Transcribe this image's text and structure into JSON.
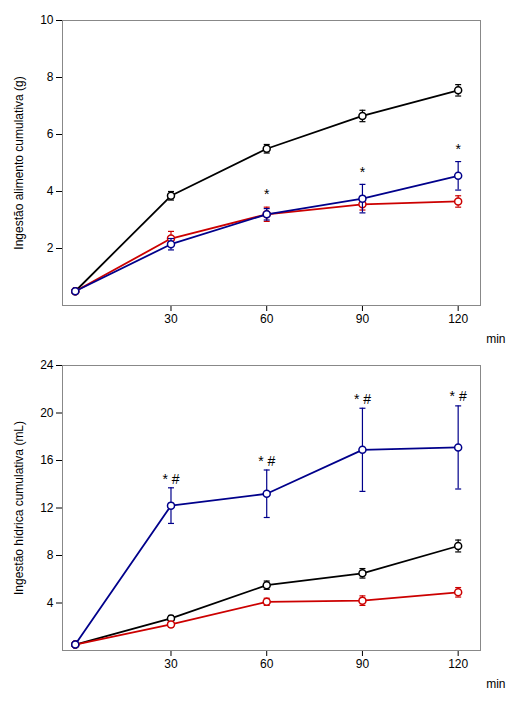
{
  "chart_data": [
    {
      "type": "line",
      "ylabel": "Ingestão alimento cumulativa (g)",
      "xlabel": "min",
      "x": [
        0,
        30,
        60,
        90,
        120
      ],
      "xlim": [
        -4,
        127
      ],
      "xticks": [
        30,
        60,
        90,
        120
      ],
      "ylim": [
        0,
        10
      ],
      "yticks": [
        2,
        4,
        6,
        8,
        10
      ],
      "series": [
        {
          "color": "#000000",
          "marker": "circle",
          "values": [
            0.5,
            3.85,
            5.5,
            6.65,
            7.55
          ],
          "errors": [
            0.05,
            0.15,
            0.15,
            0.2,
            0.2
          ]
        },
        {
          "color": "#cc0000",
          "marker": "circle",
          "values": [
            0.5,
            2.35,
            3.2,
            3.55,
            3.65
          ],
          "errors": [
            0.05,
            0.25,
            0.25,
            0.2,
            0.2
          ]
        },
        {
          "color": "#00008B",
          "marker": "circle",
          "values": [
            0.5,
            2.15,
            3.2,
            3.75,
            4.55
          ],
          "errors": [
            0.05,
            0.2,
            0.2,
            0.5,
            0.5
          ]
        }
      ],
      "annotations": [
        {
          "x": 60,
          "y": 3.75,
          "text": "*"
        },
        {
          "x": 90,
          "y": 4.5,
          "text": "*"
        },
        {
          "x": 120,
          "y": 5.3,
          "text": "*"
        }
      ]
    },
    {
      "type": "line",
      "ylabel": "Ingestão hídrica cumulativa (mL)",
      "xlabel": "min",
      "x": [
        0,
        30,
        60,
        90,
        120
      ],
      "xlim": [
        -4,
        127
      ],
      "xticks": [
        30,
        60,
        90,
        120
      ],
      "ylim": [
        0,
        24
      ],
      "yticks": [
        4,
        8,
        12,
        16,
        20,
        24
      ],
      "series": [
        {
          "color": "#000000",
          "marker": "circle",
          "values": [
            0.5,
            2.7,
            5.5,
            6.5,
            8.8
          ],
          "errors": [
            0.05,
            0.25,
            0.35,
            0.4,
            0.5
          ]
        },
        {
          "color": "#cc0000",
          "marker": "circle",
          "values": [
            0.5,
            2.2,
            4.1,
            4.2,
            4.9
          ],
          "errors": [
            0.05,
            0.25,
            0.3,
            0.4,
            0.4
          ]
        },
        {
          "color": "#00008B",
          "marker": "circle",
          "values": [
            0.5,
            12.2,
            13.2,
            16.9,
            17.1
          ],
          "errors": [
            0.05,
            1.5,
            2.0,
            3.5,
            3.5
          ]
        }
      ],
      "annotations": [
        {
          "x": 30,
          "y": 14.0,
          "text": "* #"
        },
        {
          "x": 60,
          "y": 15.5,
          "text": "* #"
        },
        {
          "x": 90,
          "y": 20.8,
          "text": "* #"
        },
        {
          "x": 120,
          "y": 21.0,
          "text": "* #"
        }
      ]
    }
  ]
}
